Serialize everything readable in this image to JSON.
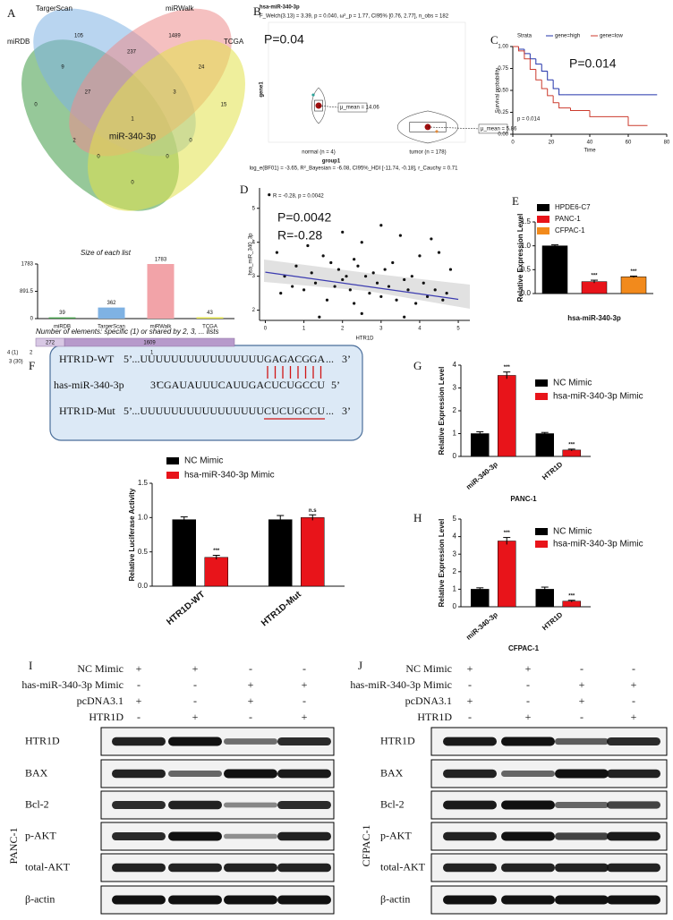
{
  "panel_letters": [
    "A",
    "B",
    "C",
    "D",
    "E",
    "F",
    "G",
    "H",
    "I",
    "J"
  ],
  "venn": {
    "sets": [
      {
        "name": "miRDB",
        "color": "#3f9b45"
      },
      {
        "name": "TargerScan",
        "color": "#7fb2e3"
      },
      {
        "name": "miRWalk",
        "color": "#ec8d8d"
      },
      {
        "name": "TCGA",
        "color": "#e2e24a"
      }
    ],
    "regions": [
      105,
      1489,
      9,
      237,
      24,
      0,
      27,
      3,
      15,
      1,
      2,
      0,
      0,
      0,
      0
    ],
    "center_label": "miR-340-3p"
  },
  "elements": {
    "title": "Number of elements: specific (1) or shared by 2, 3, ... lists",
    "values": [
      272,
      1609
    ],
    "colors": [
      "#d8c8e4",
      "#b79acb"
    ],
    "tick_labels": [
      "4 (1)",
      "2",
      "3 (30)",
      "1"
    ]
  },
  "chart_data": [
    {
      "type": "bar",
      "title": "Size of each list",
      "categories": [
        "miRDB",
        "TargerScan",
        "miRWalk",
        "TCGA"
      ],
      "values": [
        39,
        362,
        1783,
        43
      ],
      "colors": [
        "#3f9b45",
        "#7fb2e3",
        "#f2a3a8",
        "#e2e24a"
      ],
      "ylim": [
        0,
        1783
      ],
      "yticks": [
        0,
        891.5,
        1783
      ]
    },
    {
      "type": "violin",
      "title": "hsa-miR-340-3p",
      "subtitle": "F_Welch(3.13) = 3.39, p = 0.040, ω²_p = 1.77, CI95% [0.76, 2.77], n_obs = 182",
      "footnote": "log_e(BF01) = -3.65, R²_Bayesian = -6.08, CI95%_HDI [-11.74, -0.18], r_Cauchy = 0.71",
      "annotations": [
        "P=0.04"
      ],
      "ylabel": "gene1",
      "xlabel": "group1",
      "categories": [
        "normal (n = 4)",
        "tumor (n = 178)"
      ],
      "values": [
        14.06,
        5.86
      ],
      "value_labels": [
        "μ_mean = 14.06",
        "μ_mean = 5.86"
      ],
      "colors": [
        "#2aa198",
        "#e08a3c"
      ],
      "ylim": [
        0,
        46
      ]
    },
    {
      "type": "line",
      "step": true,
      "annotations": [
        "P=0.014",
        "p = 0.014"
      ],
      "xlabel": "Time",
      "ylabel": "Survival probability",
      "legend_title": "Strata",
      "series": [
        {
          "name": "gene=high",
          "color": "#2233aa",
          "x": [
            0,
            3,
            6,
            9,
            12,
            15,
            18,
            21,
            24,
            27,
            75
          ],
          "values": [
            1,
            0.97,
            0.92,
            0.86,
            0.8,
            0.72,
            0.62,
            0.52,
            0.45,
            0.45,
            0.45
          ]
        },
        {
          "name": "gene=low",
          "color": "#cc3b2e",
          "x": [
            0,
            3,
            6,
            9,
            12,
            15,
            18,
            21,
            24,
            30,
            40,
            50,
            60,
            70
          ],
          "values": [
            1,
            0.95,
            0.86,
            0.74,
            0.62,
            0.52,
            0.44,
            0.36,
            0.3,
            0.27,
            0.2,
            0.2,
            0.1,
            0.1
          ]
        }
      ],
      "xlim": [
        0,
        80
      ],
      "xticks": [
        0,
        20,
        40,
        60,
        80
      ],
      "ylim": [
        0,
        1
      ],
      "yticks": [
        {
          "value": 0,
          "label": "0.00"
        },
        {
          "value": 0.25,
          "label": "0.25"
        },
        {
          "value": 0.5,
          "label": "0.50"
        },
        {
          "value": 0.75,
          "label": "0.75"
        },
        {
          "value": 1,
          "label": "1.00"
        }
      ]
    },
    {
      "type": "scatter",
      "annotations": [
        "R = -0.28, p = 0.0042",
        "P=0.0042",
        "R=-0.28"
      ],
      "xlabel": "HTR1D",
      "ylabel": "hsa_miR_340_3p",
      "color": "#111111",
      "x": [
        0.1,
        0.3,
        0.4,
        0.5,
        0.7,
        0.8,
        1.0,
        1.1,
        1.2,
        1.3,
        1.5,
        1.6,
        1.7,
        1.8,
        1.9,
        2.0,
        2.0,
        2.1,
        2.2,
        2.3,
        2.3,
        2.4,
        2.5,
        2.6,
        2.7,
        2.8,
        2.9,
        3.0,
        3.0,
        3.1,
        3.2,
        3.3,
        3.4,
        3.5,
        3.6,
        3.7,
        3.8,
        3.9,
        4.0,
        4.1,
        4.2,
        4.3,
        4.4,
        4.5,
        4.6,
        4.7,
        4.8,
        2.5,
        1.4,
        3.6
      ],
      "values": [
        5.4,
        3.7,
        2.5,
        3.0,
        2.7,
        3.3,
        2.6,
        3.9,
        3.1,
        2.8,
        3.6,
        2.3,
        3.4,
        2.7,
        3.2,
        4.3,
        2.9,
        3.0,
        2.6,
        3.5,
        2.2,
        3.3,
        4.0,
        3.0,
        2.5,
        3.1,
        2.8,
        4.5,
        2.4,
        3.2,
        2.7,
        3.4,
        2.3,
        4.2,
        2.9,
        2.6,
        3.0,
        2.2,
        3.6,
        2.8,
        2.4,
        4.1,
        2.6,
        3.7,
        2.3,
        2.5,
        3.2,
        1.9,
        1.8,
        1.8
      ],
      "fit": {
        "color": "#3b3bb0",
        "x": [
          0,
          5
        ],
        "values": [
          3.12,
          2.32
        ]
      },
      "xlim": [
        -0.15,
        5.3
      ],
      "ylim": [
        1.7,
        5.6
      ],
      "xticks": [
        0,
        1,
        2,
        3,
        4,
        5
      ],
      "yticks": [
        2,
        3,
        4,
        5
      ]
    },
    {
      "type": "bar",
      "ylabel": "Relative Expression Level",
      "categories": [
        "hsa-miR-340-3p"
      ],
      "series": [
        {
          "name": "HPDE6-C7",
          "color": "#000000",
          "values": [
            1.0
          ],
          "errors": [
            0.02
          ],
          "significance": [
            null
          ]
        },
        {
          "name": "PANC-1",
          "color": "#e8141a",
          "values": [
            0.25
          ],
          "errors": [
            0.03
          ],
          "significance": [
            "***"
          ]
        },
        {
          "name": "CFPAC-1",
          "color": "#f28a1c",
          "values": [
            0.35
          ],
          "errors": [
            0.015
          ],
          "significance": [
            "***"
          ]
        }
      ],
      "ylim": [
        0,
        1.5
      ],
      "yticks": [
        {
          "value": 0,
          "label": "0.0"
        },
        {
          "value": 0.5,
          "label": "0.5"
        },
        {
          "value": 1,
          "label": "1.0"
        },
        {
          "value": 1.5,
          "label": "1.5"
        }
      ]
    },
    {
      "type": "bar",
      "ylabel": "Relative Luciferase Activity",
      "categories": [
        "HTR1D-WT",
        "HTR1D-Mut"
      ],
      "series": [
        {
          "name": "NC Mimic",
          "color": "#000000",
          "values": [
            0.97,
            0.97
          ],
          "errors": [
            0.04,
            0.06
          ],
          "significance": [
            null,
            null
          ]
        },
        {
          "name": "hsa-miR-340-3p Mimic",
          "color": "#e8141a",
          "values": [
            0.42,
            1.0
          ],
          "errors": [
            0.03,
            0.04
          ],
          "significance": [
            "***",
            "n.s"
          ]
        }
      ],
      "ylim": [
        0,
        1.5
      ],
      "yticks": [
        {
          "value": 0,
          "label": "0.0"
        },
        {
          "value": 0.5,
          "label": "0.5"
        },
        {
          "value": 1,
          "label": "1.0"
        },
        {
          "value": 1.5,
          "label": "1.5"
        }
      ]
    },
    {
      "type": "bar",
      "title": "PANC-1",
      "ylabel": "Relative Expression Level",
      "categories": [
        "miR-340-3p",
        "HTR1D"
      ],
      "series": [
        {
          "name": "NC Mimic",
          "color": "#000000",
          "values": [
            1.0,
            1.0
          ],
          "errors": [
            0.08,
            0.05
          ],
          "significance": [
            null,
            null
          ]
        },
        {
          "name": "hsa-miR-340-3p Mimic",
          "color": "#e8141a",
          "values": [
            3.55,
            0.28
          ],
          "errors": [
            0.15,
            0.04
          ],
          "significance": [
            "***",
            "***"
          ]
        }
      ],
      "ylim": [
        0,
        4
      ],
      "yticks": [
        0,
        1,
        2,
        3,
        4
      ]
    },
    {
      "type": "bar",
      "title": "CFPAC-1",
      "ylabel": "Relative Expression Level",
      "categories": [
        "miR-340-3p",
        "HTR1D"
      ],
      "series": [
        {
          "name": "NC Mimic",
          "color": "#000000",
          "values": [
            1.0,
            1.0
          ],
          "errors": [
            0.08,
            0.12
          ],
          "significance": [
            null,
            null
          ]
        },
        {
          "name": "hsa-miR-340-3p Mimic",
          "color": "#e8141a",
          "values": [
            3.75,
            0.32
          ],
          "errors": [
            0.2,
            0.05
          ],
          "significance": [
            "***",
            "***"
          ]
        }
      ],
      "ylim": [
        0,
        5
      ],
      "yticks": [
        0,
        1,
        2,
        3,
        4,
        5
      ]
    }
  ],
  "sequence_box": {
    "rows": [
      {
        "label": "HTR1D-WT",
        "left": "5’",
        "seq": "...UUUUUUUUUUUUUUUU",
        "site": "GAGACGGA",
        "tail": "...",
        "right": "3’"
      },
      {
        "label": "has-miR-340-3p",
        "left": "3’",
        "seq": "CGAUAUUUCAUUGA",
        "site": "CUCUGCCU",
        "right": "5’"
      },
      {
        "label": "HTR1D-Mut",
        "left": "5’",
        "seq": "...UUUUUUUUUUUUUUUU",
        "site": "CUCUGCCU",
        "tail": "...",
        "right": "3’"
      }
    ]
  },
  "blots": [
    {
      "cell_line": "PANC-1",
      "conditions": [
        {
          "label": "NC Mimic",
          "signs": [
            "+",
            "+",
            "-",
            "-"
          ]
        },
        {
          "label": "has-miR-340-3p Mimic",
          "signs": [
            "-",
            "-",
            "+",
            "+"
          ]
        },
        {
          "label": "pcDNA3.1",
          "signs": [
            "+",
            "-",
            "+",
            "-"
          ]
        },
        {
          "label": "HTR1D",
          "signs": [
            "-",
            "+",
            "-",
            "+"
          ]
        }
      ],
      "bands": [
        "HTR1D",
        "BAX",
        "Bcl-2",
        "p-AKT",
        "total-AKT",
        "β-actin"
      ]
    },
    {
      "cell_line": "CFPAC-1",
      "conditions": [
        {
          "label": "NC Mimic",
          "signs": [
            "+",
            "+",
            "-",
            "-"
          ]
        },
        {
          "label": "has-miR-340-3p Mimic",
          "signs": [
            "-",
            "-",
            "+",
            "+"
          ]
        },
        {
          "label": "pcDNA3.1",
          "signs": [
            "+",
            "-",
            "+",
            "-"
          ]
        },
        {
          "label": "HTR1D",
          "signs": [
            "-",
            "+",
            "-",
            "+"
          ]
        }
      ],
      "bands": [
        "HTR1D",
        "BAX",
        "Bcl-2",
        "p-AKT",
        "total-AKT",
        "β-actin"
      ]
    }
  ]
}
